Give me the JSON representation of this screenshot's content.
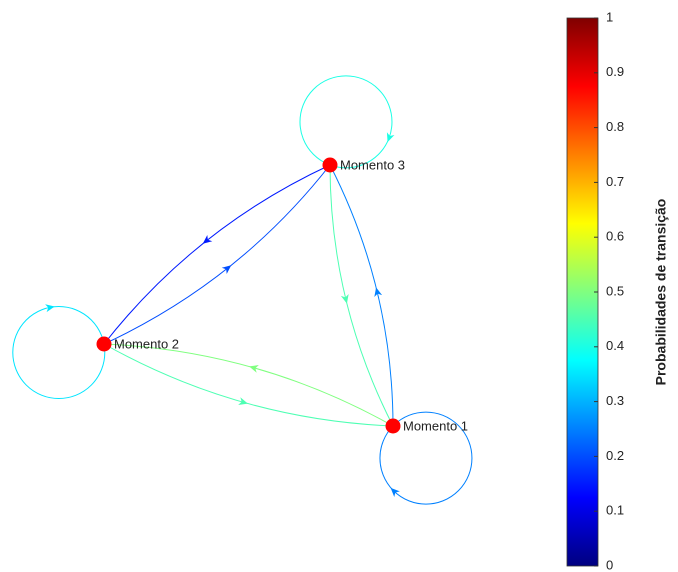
{
  "chart_data": {
    "type": "graph",
    "nodes": [
      "Momento 1",
      "Momento 2",
      "Momento 3"
    ],
    "edges": [
      {
        "source": "Momento 1",
        "target": "Momento 1",
        "value": 0.25
      },
      {
        "source": "Momento 1",
        "target": "Momento 2",
        "value": 0.5
      },
      {
        "source": "Momento 1",
        "target": "Momento 3",
        "value": 0.25
      },
      {
        "source": "Momento 2",
        "target": "Momento 1",
        "value": 0.45
      },
      {
        "source": "Momento 2",
        "target": "Momento 2",
        "value": 0.35
      },
      {
        "source": "Momento 2",
        "target": "Momento 3",
        "value": 0.2
      },
      {
        "source": "Momento 3",
        "target": "Momento 1",
        "value": 0.45
      },
      {
        "source": "Momento 3",
        "target": "Momento 2",
        "value": 0.15
      },
      {
        "source": "Momento 3",
        "target": "Momento 3",
        "value": 0.4
      }
    ],
    "node_color": "#ff0000",
    "colormap": "jet",
    "colorbar": {
      "label": "Probabilidades de transição",
      "clim": [
        0,
        1
      ],
      "ticks": [
        0,
        0.1,
        0.2,
        0.3,
        0.4,
        0.5,
        0.6,
        0.7,
        0.8,
        0.9,
        1
      ]
    }
  }
}
